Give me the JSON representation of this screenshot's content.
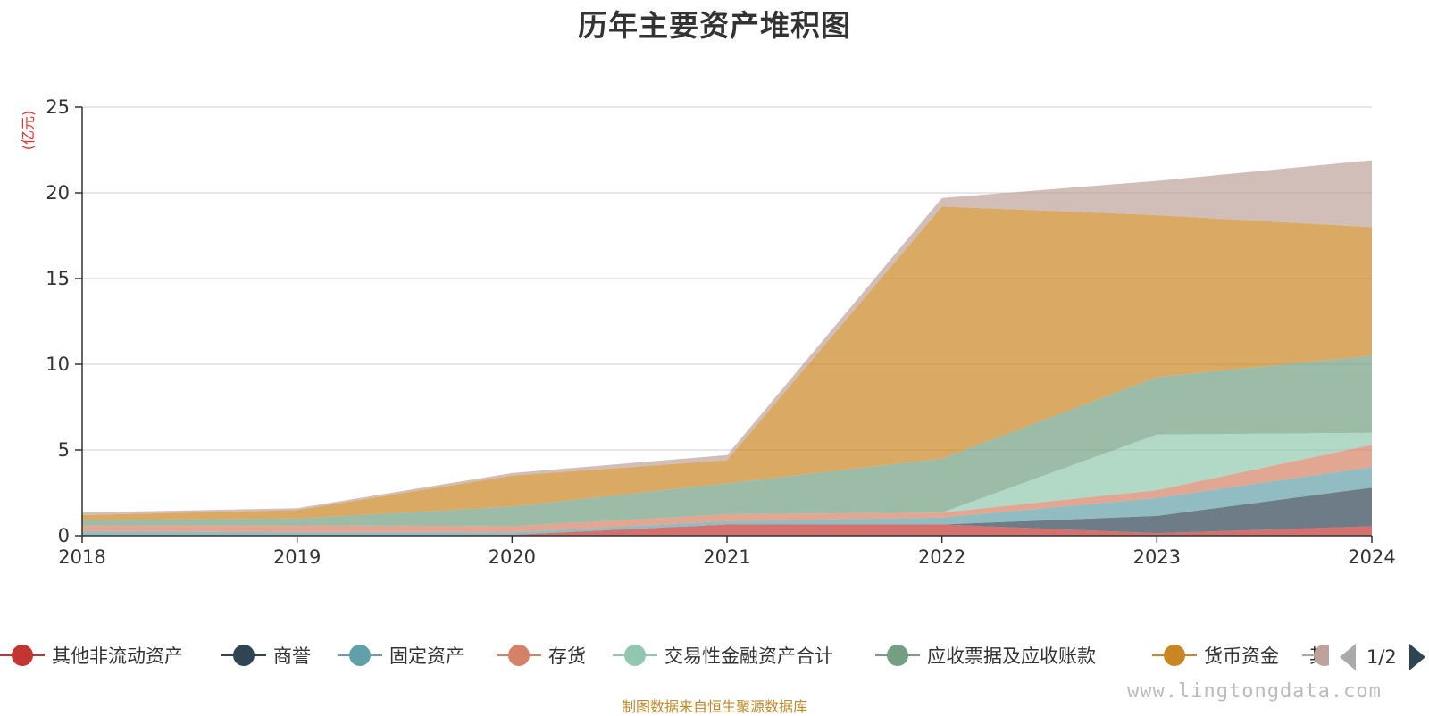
{
  "chart_data": {
    "type": "area",
    "title": "历年主要资产堆积图",
    "ylabel": "(亿元)",
    "xlabel": "",
    "x": [
      "2018",
      "2019",
      "2020",
      "2021",
      "2022",
      "2023",
      "2024"
    ],
    "ylim": [
      0,
      25
    ],
    "yticks": [
      0,
      5,
      10,
      15,
      20,
      25
    ],
    "stacked": true,
    "grid": true,
    "series": [
      {
        "name": "其他非流动资产",
        "color": "#c23531",
        "values": [
          0.0,
          0.0,
          0.05,
          0.65,
          0.65,
          0.15,
          0.55
        ]
      },
      {
        "name": "商誉",
        "color": "#2f4554",
        "values": [
          0.0,
          0.0,
          0.0,
          0.0,
          0.0,
          1.0,
          2.25
        ]
      },
      {
        "name": "固定资产",
        "color": "#61a0a8",
        "values": [
          0.25,
          0.2,
          0.15,
          0.2,
          0.4,
          1.05,
          1.2
        ]
      },
      {
        "name": "存货",
        "color": "#d48265",
        "values": [
          0.35,
          0.4,
          0.35,
          0.4,
          0.3,
          0.45,
          1.3
        ]
      },
      {
        "name": "交易性金融资产合计",
        "color": "#91c7ae",
        "values": [
          0.0,
          0.0,
          0.0,
          0.0,
          0.0,
          3.25,
          0.7
        ]
      },
      {
        "name": "应收票据及应收账款",
        "color": "#749f83",
        "values": [
          0.3,
          0.4,
          1.15,
          1.8,
          3.15,
          3.35,
          4.5
        ]
      },
      {
        "name": "货币资金",
        "color": "#ca8622",
        "values": [
          0.3,
          0.5,
          1.8,
          1.35,
          14.7,
          9.45,
          7.5
        ]
      },
      {
        "name": "其他",
        "color": "#bda29a",
        "values": [
          0.15,
          0.1,
          0.15,
          0.3,
          0.5,
          2.0,
          3.9
        ]
      }
    ],
    "legend_position": "bottom",
    "legend_page": "1/2"
  },
  "source_note": "制图数据来自恒生聚源数据库",
  "watermark": "www.lingtongdata.com"
}
